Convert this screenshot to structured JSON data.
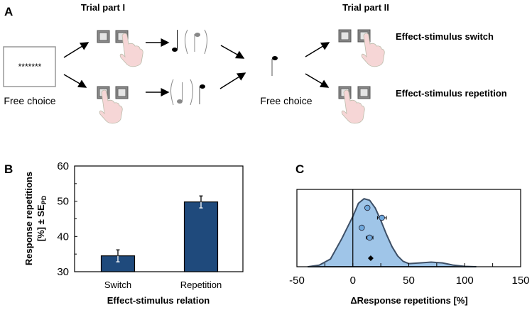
{
  "panel_a": {
    "label": "A",
    "trial_part_1": "Trial part I",
    "trial_part_2": "Trial part II",
    "stimulus": "*******",
    "free_choice_1": "Free choice",
    "free_choice_2": "Free choice",
    "switch_label": "Effect-stimulus switch",
    "repetition_label": "Effect-stimulus repetition"
  },
  "chart_data": [
    {
      "panel": "B",
      "type": "bar",
      "categories": [
        "Switch",
        "Repetition"
      ],
      "values": [
        34.5,
        49.8
      ],
      "errors": [
        1.7,
        1.7
      ],
      "ylabel_line1": "Response repetitions",
      "ylabel_line2": "[%] ± SE",
      "ylabel_sub": "PD",
      "xlabel": "Effect-stimulus relation",
      "ylim": [
        30,
        60
      ],
      "yticks": [
        "30",
        "40",
        "50",
        "60"
      ],
      "bar_color": "#1f4a7c"
    },
    {
      "panel": "C",
      "type": "area",
      "xlabel": "ΔResponse repetitions [%]",
      "xlim": [
        -50,
        150
      ],
      "xticks": [
        "-50",
        "0",
        "50",
        "100",
        "150"
      ],
      "density": [
        [
          -40,
          0
        ],
        [
          -30,
          0.02
        ],
        [
          -20,
          0.1
        ],
        [
          -10,
          0.36
        ],
        [
          0,
          0.65
        ],
        [
          5,
          0.82
        ],
        [
          10,
          0.88
        ],
        [
          15,
          0.86
        ],
        [
          20,
          0.76
        ],
        [
          25,
          0.6
        ],
        [
          30,
          0.42
        ],
        [
          35,
          0.26
        ],
        [
          40,
          0.14
        ],
        [
          45,
          0.07
        ],
        [
          50,
          0.04
        ],
        [
          60,
          0.05
        ],
        [
          70,
          0.06
        ],
        [
          80,
          0.05
        ],
        [
          90,
          0.02
        ],
        [
          100,
          0.005
        ],
        [
          110,
          0
        ]
      ],
      "points": [
        {
          "x": 13,
          "err": 0
        },
        {
          "x": 26,
          "err": 4
        },
        {
          "x": 8,
          "err": 0
        },
        {
          "x": 15,
          "err": 3
        }
      ],
      "mean": 16,
      "fill_color": "#9fc5e8",
      "line_color": "#3d4f66",
      "point_color": "#6fa8dc"
    }
  ]
}
